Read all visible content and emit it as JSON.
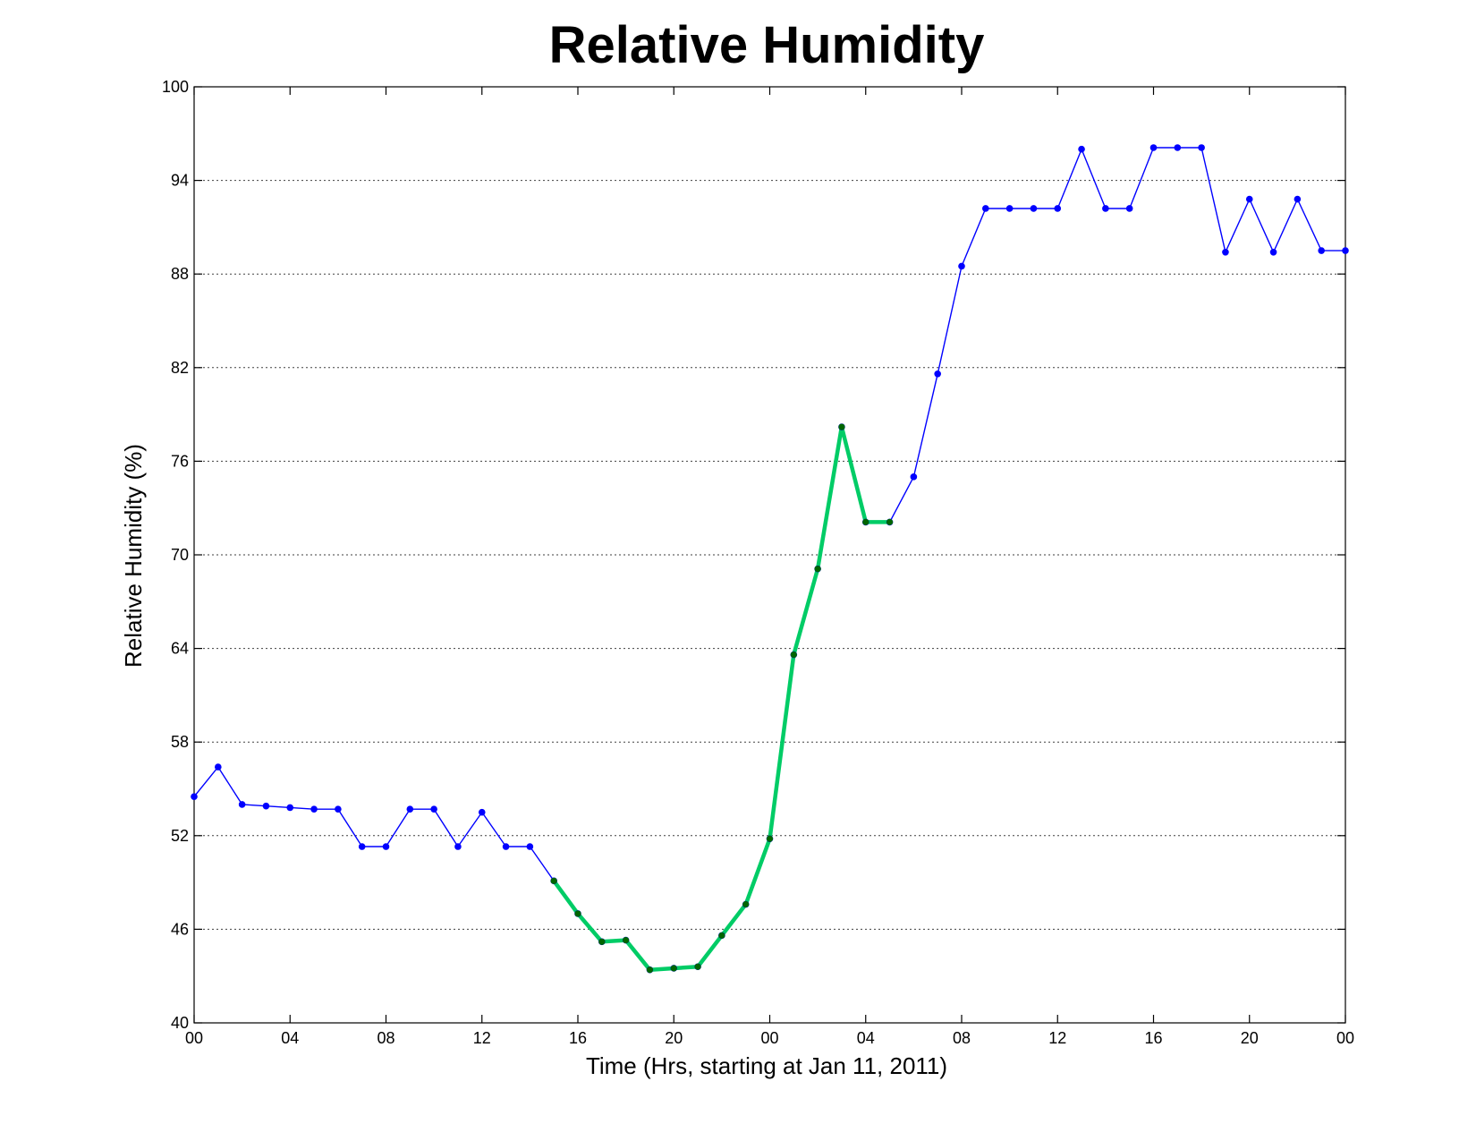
{
  "chart_data": {
    "type": "line",
    "title": "Relative Humidity",
    "xlabel": "Time (Hrs, starting at Jan 11, 2011)",
    "ylabel": "Relative Humidity (%)",
    "ylim": [
      40,
      100
    ],
    "xlim": [
      0,
      48
    ],
    "grid": "horizontal-dotted",
    "x_ticks": [
      {
        "value": 0,
        "label": "00"
      },
      {
        "value": 4,
        "label": "04"
      },
      {
        "value": 8,
        "label": "08"
      },
      {
        "value": 12,
        "label": "12"
      },
      {
        "value": 16,
        "label": "16"
      },
      {
        "value": 20,
        "label": "20"
      },
      {
        "value": 24,
        "label": "00"
      },
      {
        "value": 28,
        "label": "04"
      },
      {
        "value": 32,
        "label": "08"
      },
      {
        "value": 36,
        "label": "12"
      },
      {
        "value": 40,
        "label": "16"
      },
      {
        "value": 44,
        "label": "20"
      },
      {
        "value": 48,
        "label": "00"
      }
    ],
    "y_ticks": [
      40,
      46,
      52,
      58,
      64,
      70,
      76,
      82,
      88,
      94,
      100
    ],
    "series": [
      {
        "color": "#0000ff",
        "marker_color": "#0000ff",
        "x": [
          0,
          1,
          2,
          3,
          4,
          5,
          6,
          7,
          8,
          9,
          10,
          11,
          12,
          13,
          14,
          15,
          16,
          17,
          18,
          19,
          20,
          21,
          22,
          23,
          24,
          25,
          26,
          27,
          28,
          29,
          30,
          31,
          32,
          33,
          34,
          35,
          36,
          37,
          38,
          39,
          40,
          41,
          42,
          43,
          44,
          45,
          46,
          47,
          48
        ],
        "y": [
          54.5,
          56.4,
          54.0,
          53.9,
          53.8,
          53.7,
          53.7,
          51.3,
          51.3,
          53.7,
          53.7,
          51.3,
          53.5,
          51.3,
          51.3,
          49.1,
          47.0,
          45.2,
          45.3,
          43.4,
          43.5,
          43.6,
          45.6,
          47.6,
          51.8,
          63.6,
          69.1,
          78.2,
          72.1,
          72.1,
          75.0,
          81.6,
          88.5,
          92.2,
          92.2,
          92.2,
          92.2,
          96.0,
          92.2,
          92.2,
          96.1,
          96.1,
          96.1,
          89.4,
          92.8,
          89.4,
          92.8,
          89.5,
          89.5
        ]
      },
      {
        "color": "#00cc66",
        "marker_color": "#006600",
        "x": [
          15,
          16,
          17,
          18,
          19,
          20,
          21,
          22,
          23,
          24,
          25,
          26,
          27,
          28,
          29
        ],
        "y": [
          49.1,
          47.0,
          45.2,
          45.3,
          43.4,
          43.5,
          43.6,
          45.6,
          47.6,
          51.8,
          63.6,
          69.1,
          78.2,
          72.1,
          72.1
        ]
      }
    ]
  }
}
